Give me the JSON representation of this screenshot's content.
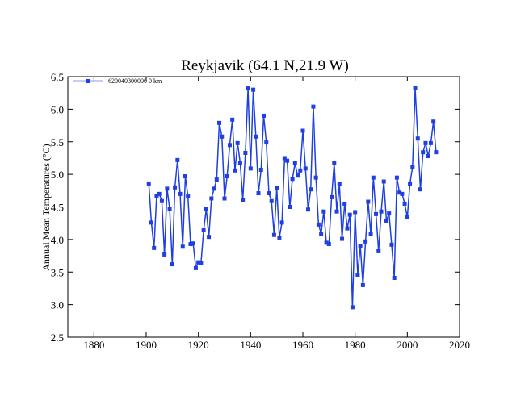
{
  "chart_data": {
    "type": "line",
    "title": "Reykjavik (64.1 N,21.9 W)",
    "xlabel": "",
    "ylabel": "Annual Mean Temperatures (°C)",
    "xlim": [
      1870,
      2020
    ],
    "ylim": [
      2.5,
      6.5
    ],
    "xticks": [
      1880,
      1900,
      1920,
      1940,
      1960,
      1980,
      2000,
      2020
    ],
    "yticks": [
      2.5,
      3.0,
      3.5,
      4.0,
      4.5,
      5.0,
      5.5,
      6.0,
      6.5
    ],
    "ytick_labels": [
      "2.5",
      "3.0",
      "3.5",
      "4.0",
      "4.5",
      "5.0",
      "5.5",
      "6.0",
      "6.5"
    ],
    "legend_position": "top-left",
    "grid": false,
    "series": [
      {
        "name": "620040300000 0 km",
        "color": "#1f3fe0",
        "x": [
          1901,
          1902,
          1903,
          1904,
          1905,
          1906,
          1907,
          1908,
          1909,
          1910,
          1911,
          1912,
          1913,
          1914,
          1915,
          1916,
          1917,
          1918,
          1919,
          1920,
          1921,
          1922,
          1923,
          1924,
          1925,
          1926,
          1927,
          1928,
          1929,
          1930,
          1931,
          1932,
          1933,
          1934,
          1935,
          1936,
          1937,
          1938,
          1939,
          1940,
          1941,
          1942,
          1943,
          1944,
          1945,
          1946,
          1947,
          1948,
          1949,
          1950,
          1951,
          1952,
          1953,
          1954,
          1955,
          1956,
          1957,
          1958,
          1959,
          1960,
          1961,
          1962,
          1963,
          1964,
          1965,
          1966,
          1967,
          1968,
          1969,
          1970,
          1971,
          1972,
          1973,
          1974,
          1975,
          1976,
          1977,
          1978,
          1979,
          1980,
          1981,
          1982,
          1983,
          1984,
          1985,
          1986,
          1987,
          1988,
          1989,
          1990,
          1991,
          1992,
          1993,
          1994,
          1995,
          1996,
          1997,
          1998,
          1999,
          2000,
          2001,
          2002,
          2003,
          2004,
          2005,
          2006,
          2007,
          2008,
          2009,
          2010,
          2011
        ],
        "y": [
          4.86,
          4.26,
          3.87,
          4.67,
          4.7,
          4.59,
          3.77,
          4.78,
          4.47,
          3.62,
          4.8,
          5.22,
          4.7,
          3.89,
          4.97,
          4.66,
          3.93,
          3.94,
          3.56,
          3.65,
          3.64,
          4.14,
          4.47,
          4.04,
          4.63,
          4.78,
          4.92,
          5.79,
          5.58,
          4.63,
          4.97,
          5.45,
          5.84,
          5.06,
          5.48,
          5.18,
          4.61,
          5.33,
          6.32,
          5.09,
          6.3,
          5.58,
          4.71,
          5.07,
          5.9,
          5.49,
          4.71,
          4.59,
          4.07,
          4.79,
          4.03,
          4.26,
          5.25,
          5.21,
          4.5,
          4.93,
          5.17,
          4.98,
          5.06,
          5.67,
          5.09,
          4.46,
          4.77,
          6.04,
          4.95,
          4.23,
          4.09,
          4.43,
          3.95,
          3.93,
          4.65,
          5.17,
          4.43,
          4.85,
          4.01,
          4.55,
          4.17,
          4.38,
          2.96,
          4.42,
          3.46,
          3.9,
          3.3,
          3.97,
          4.58,
          4.08,
          4.95,
          4.39,
          3.82,
          4.43,
          4.89,
          4.29,
          4.4,
          3.92,
          3.41,
          4.95,
          4.72,
          4.7,
          4.55,
          4.34,
          4.86,
          5.11,
          6.32,
          5.55,
          4.77,
          5.34,
          5.48,
          5.28,
          5.48,
          5.81,
          5.34
        ]
      }
    ]
  }
}
